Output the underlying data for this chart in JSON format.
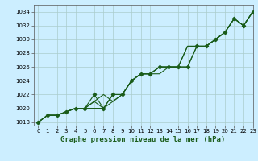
{
  "title": "Graphe pression niveau de la mer (hPa)",
  "bg_color": "#cceeff",
  "plot_bg_color": "#cceeff",
  "grid_color": "#aacccc",
  "line_color": "#1a5c1a",
  "xlim": [
    -0.5,
    23
  ],
  "ylim": [
    1017.5,
    1035
  ],
  "yticks": [
    1018,
    1020,
    1022,
    1024,
    1026,
    1028,
    1030,
    1032,
    1034
  ],
  "xticks": [
    0,
    1,
    2,
    3,
    4,
    5,
    6,
    7,
    8,
    9,
    10,
    11,
    12,
    13,
    14,
    15,
    16,
    17,
    18,
    19,
    20,
    21,
    22,
    23
  ],
  "series": [
    [
      1018,
      1019,
      1019,
      1019.5,
      1020,
      1020,
      1020,
      1020,
      1021,
      1022,
      1024,
      1025,
      1025,
      1025,
      1026,
      1026,
      1026,
      1029,
      1029,
      1030,
      1031,
      1033,
      1032,
      1034
    ],
    [
      1018,
      1019,
      1019,
      1019.5,
      1020,
      1020,
      1021,
      1020,
      1022,
      1022,
      1024,
      1025,
      1025,
      1026,
      1026,
      1026,
      1029,
      1029,
      1029,
      1030,
      1031,
      1033,
      1032,
      1034
    ],
    [
      1018,
      1019,
      1019,
      1019.5,
      1020,
      1020,
      1021,
      1022,
      1021,
      1022,
      1024,
      1025,
      1025,
      1026,
      1026,
      1026,
      1029,
      1029,
      1029,
      1030,
      1031,
      1033,
      1032,
      1034
    ],
    [
      1018,
      1019,
      1019,
      1019.5,
      1020,
      1020,
      1022,
      1020,
      1022,
      1022,
      1024,
      1025,
      1025,
      1026,
      1026,
      1026,
      1026,
      1029,
      1029,
      1030,
      1031,
      1033,
      1032,
      1034
    ]
  ],
  "marker_series_idx": 3,
  "title_fontsize": 6.5,
  "tick_fontsize": 5.0,
  "linewidth": 0.8,
  "markersize": 2.2
}
